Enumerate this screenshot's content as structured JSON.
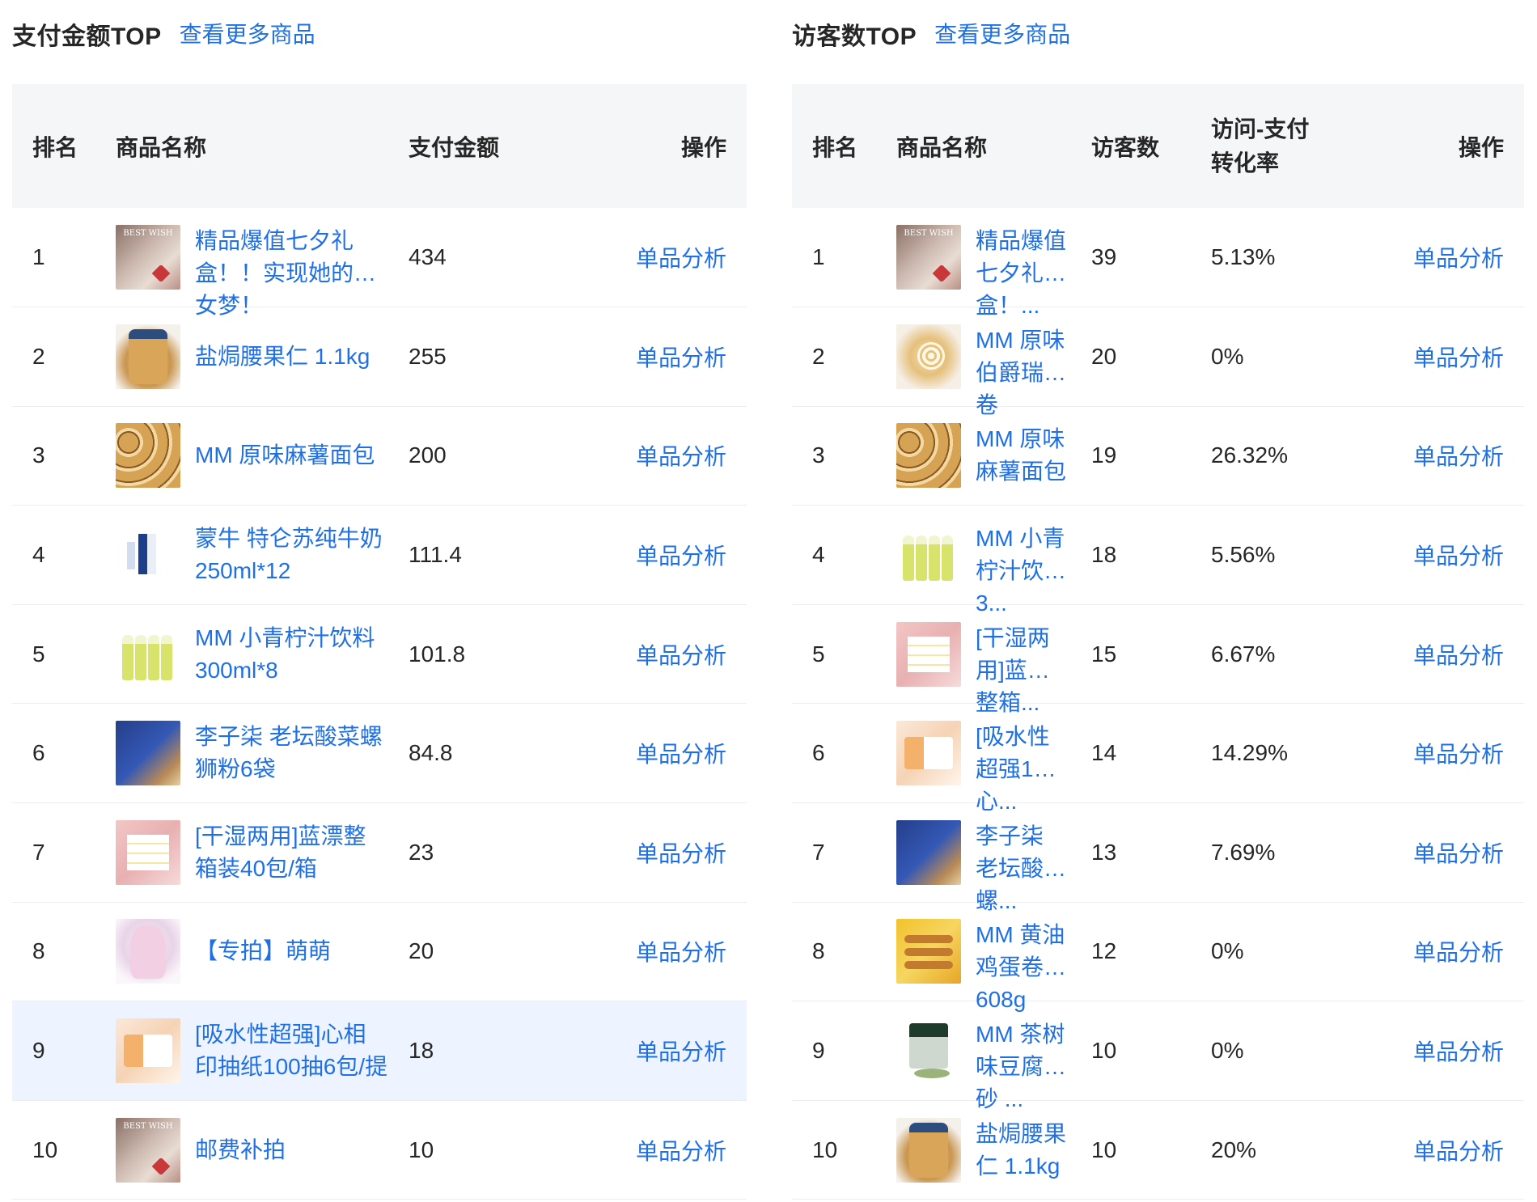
{
  "left_panel": {
    "title": "支付金额TOP",
    "more_link": "查看更多商品",
    "columns": {
      "rank": "排名",
      "name": "商品名称",
      "amount": "支付金额",
      "op": "操作"
    },
    "rows": [
      {
        "rank": "1",
        "name": "精品爆值七夕礼盒！！实现她的少女梦！",
        "amount": "434",
        "action": "单品分析",
        "thumb": "gift-box-image"
      },
      {
        "rank": "2",
        "name": "盐焗腰果仁 1.1kg",
        "amount": "255",
        "action": "单品分析",
        "thumb": "cashew-jar-image"
      },
      {
        "rank": "3",
        "name": "MM 原味麻薯面包",
        "amount": "200",
        "action": "单品分析",
        "thumb": "mochi-bread-image"
      },
      {
        "rank": "4",
        "name": "蒙牛 特仑苏纯牛奶250ml*12",
        "amount": "111.4",
        "action": "单品分析",
        "thumb": "milk-box-image"
      },
      {
        "rank": "5",
        "name": "MM 小青柠汁饮料300ml*8",
        "amount": "101.8",
        "action": "单品分析",
        "thumb": "lime-juice-image"
      },
      {
        "rank": "6",
        "name": "李子柒 老坛酸菜螺狮粉6袋",
        "amount": "84.8",
        "action": "单品分析",
        "thumb": "noodle-box-image"
      },
      {
        "rank": "7",
        "name": "[干湿两用]蓝漂整箱装40包/箱",
        "amount": "23",
        "action": "单品分析",
        "thumb": "tissue-pack-image"
      },
      {
        "rank": "8",
        "name": "【专拍】萌萌",
        "amount": "20",
        "action": "单品分析",
        "thumb": "anime-girl-image"
      },
      {
        "rank": "9",
        "name": "[吸水性超强]心相印抽纸100抽6包/提",
        "amount": "18",
        "action": "单品分析",
        "thumb": "tissue-box-image",
        "highlighted": true
      },
      {
        "rank": "10",
        "name": "邮费补拍",
        "amount": "10",
        "action": "单品分析",
        "thumb": "gift-box-image"
      }
    ]
  },
  "right_panel": {
    "title": "访客数TOP",
    "more_link": "查看更多商品",
    "columns": {
      "rank": "排名",
      "name": "商品名称",
      "visitors": "访客数",
      "conversion_line1": "访问-支付",
      "conversion_line2": "转化率",
      "op": "操作"
    },
    "rows": [
      {
        "rank": "1",
        "name": "精品爆值七夕礼盒！...",
        "visitors": "39",
        "conversion": "5.13%",
        "action": "单品分析",
        "thumb": "gift-box-image"
      },
      {
        "rank": "2",
        "name": "MM 原味伯爵瑞士卷",
        "visitors": "20",
        "conversion": "0%",
        "action": "单品分析",
        "thumb": "swiss-roll-image"
      },
      {
        "rank": "3",
        "name": "MM 原味麻薯面包",
        "visitors": "19",
        "conversion": "26.32%",
        "action": "单品分析",
        "thumb": "mochi-bread-image"
      },
      {
        "rank": "4",
        "name": "MM 小青柠汁饮料 3...",
        "visitors": "18",
        "conversion": "5.56%",
        "action": "单品分析",
        "thumb": "lime-juice-image"
      },
      {
        "rank": "5",
        "name": "[干湿两用]蓝漂整箱...",
        "visitors": "15",
        "conversion": "6.67%",
        "action": "单品分析",
        "thumb": "tissue-pack-image"
      },
      {
        "rank": "6",
        "name": "[吸水性超强1心...",
        "visitors": "14",
        "conversion": "14.29%",
        "action": "单品分析",
        "thumb": "tissue-box-image"
      },
      {
        "rank": "7",
        "name": "李子柒 老坛酸菜螺...",
        "visitors": "13",
        "conversion": "7.69%",
        "action": "单品分析",
        "thumb": "noodle-box-image"
      },
      {
        "rank": "8",
        "name": "MM 黄油鸡蛋卷 608g",
        "visitors": "12",
        "conversion": "0%",
        "action": "单品分析",
        "thumb": "egg-roll-image"
      },
      {
        "rank": "9",
        "name": "MM 茶树味豆腐猫砂 ...",
        "visitors": "10",
        "conversion": "0%",
        "action": "单品分析",
        "thumb": "cat-litter-image"
      },
      {
        "rank": "10",
        "name": "盐焗腰果仁 1.1kg",
        "visitors": "10",
        "conversion": "20%",
        "action": "单品分析",
        "thumb": "cashew-jar-image"
      }
    ]
  },
  "colors": {
    "link": "#1f6fe5",
    "header_bg": "#f5f6f8",
    "row_highlight": "#edf4ff",
    "divider": "#ebedf0"
  }
}
